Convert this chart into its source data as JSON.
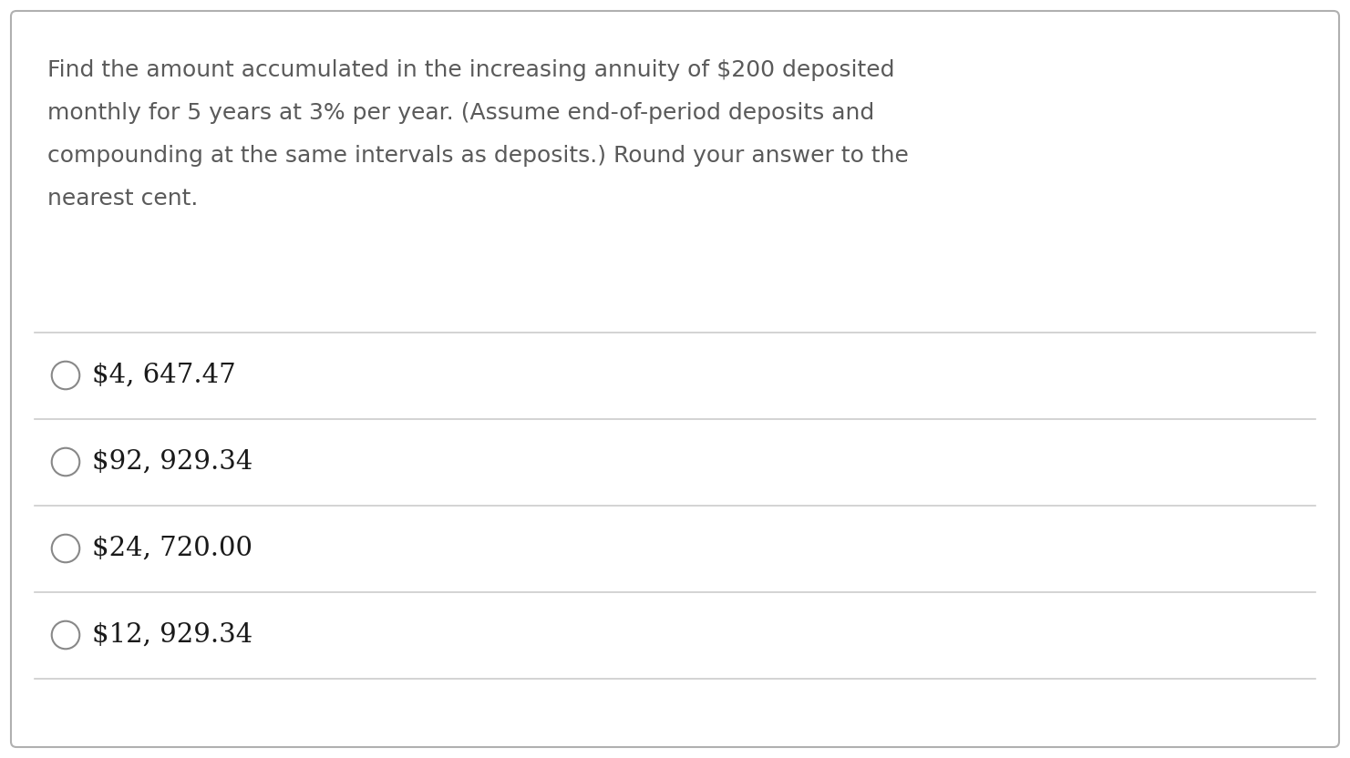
{
  "question_lines": [
    "Find the amount accumulated in the increasing annuity of $200 deposited",
    "monthly for 5 years at 3% per year. (Assume end-of-period deposits and",
    "compounding at the same intervals as deposits.) Round your answer to the",
    "nearest cent."
  ],
  "options": [
    "$4, 647.47",
    "$92, 929.34",
    "$24, 720.00",
    "$12, 929.34"
  ],
  "background_color": "#ffffff",
  "border_color": "#b0b0b0",
  "question_color": "#5a5a5a",
  "option_color": "#1a1a1a",
  "line_color": "#cccccc",
  "circle_color": "#888888",
  "question_fontsize": 18.0,
  "option_fontsize": 21.0,
  "fig_width": 14.81,
  "fig_height": 8.32,
  "dpi": 100
}
